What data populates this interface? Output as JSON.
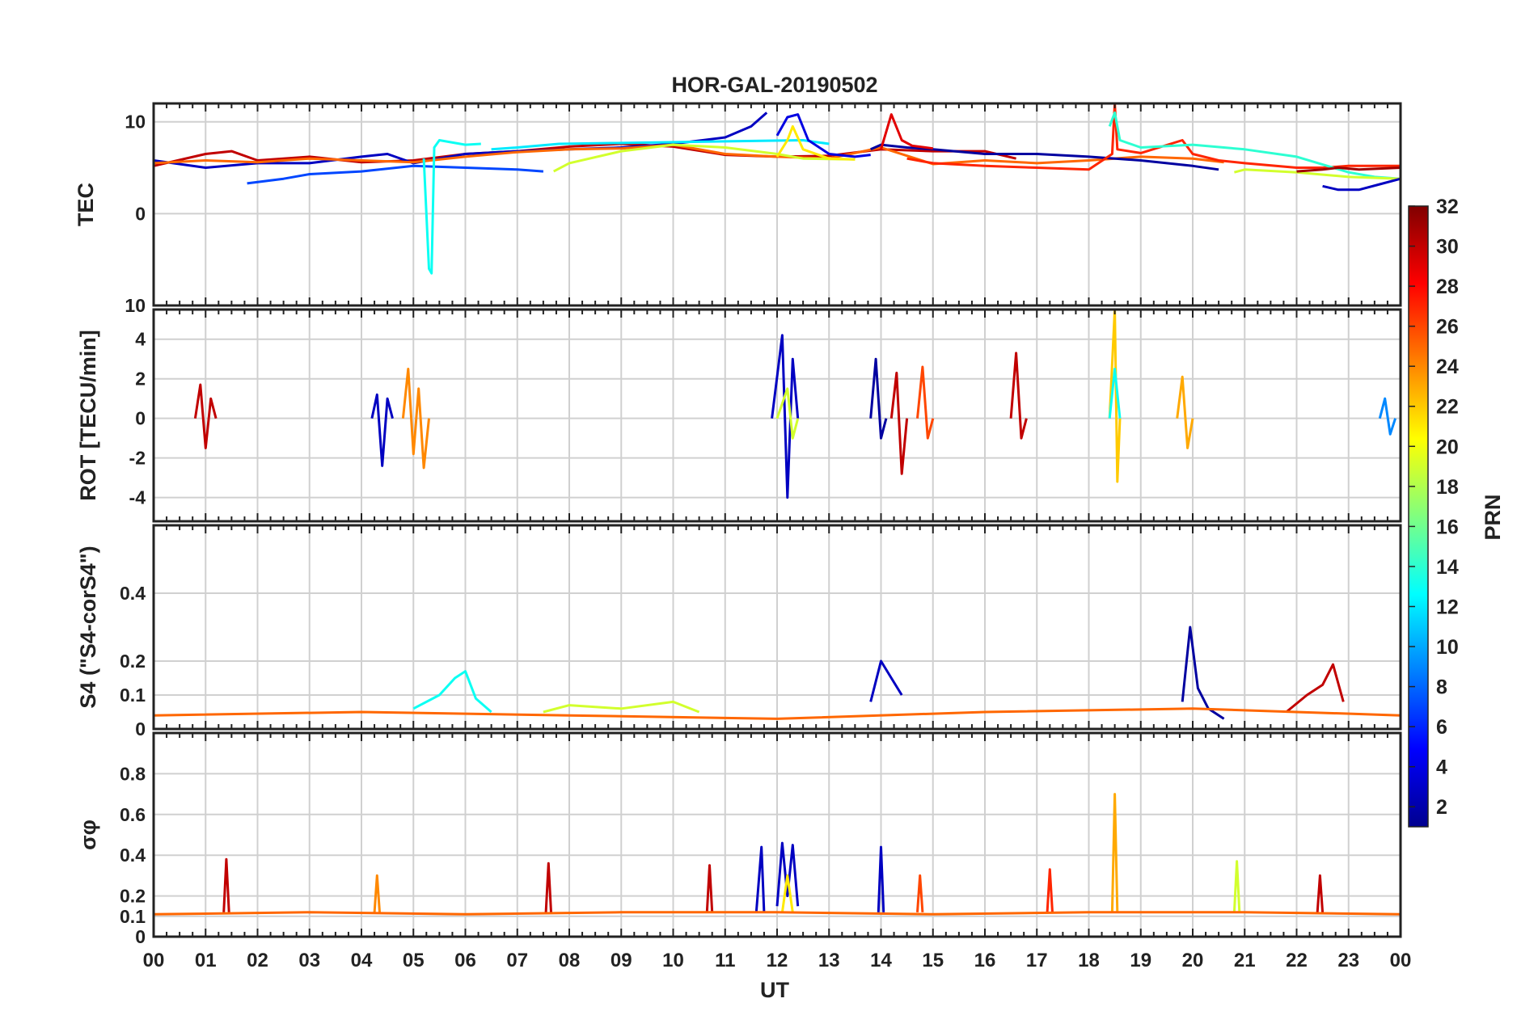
{
  "title": "HOR-GAL-20190502",
  "chart_data": {
    "type": "line",
    "title": "HOR-GAL-20190502",
    "xlabel": "UT",
    "xlim": [
      0,
      24
    ],
    "x_tick_labels": [
      "00",
      "01",
      "02",
      "03",
      "04",
      "05",
      "06",
      "07",
      "08",
      "09",
      "10",
      "11",
      "12",
      "13",
      "14",
      "15",
      "16",
      "17",
      "18",
      "19",
      "20",
      "21",
      "22",
      "23",
      "00"
    ],
    "colorbar": {
      "label": "PRN",
      "range": [
        1,
        32
      ],
      "colormap": "jet",
      "tick_labels": [
        "2",
        "4",
        "6",
        "8",
        "10",
        "12",
        "14",
        "16",
        "18",
        "20",
        "22",
        "24",
        "26",
        "28",
        "30",
        "32"
      ]
    },
    "panels": [
      {
        "name": "tec",
        "ylabel": "TEC",
        "ylim": [
          -10,
          12
        ],
        "y_tick_labels": [
          "10",
          "0",
          "10"
        ],
        "series": [
          {
            "prn": 30,
            "x": [
              0,
              1,
              1.5,
              2,
              3,
              4,
              5,
              6,
              7,
              8,
              9,
              10,
              11,
              12,
              13,
              14,
              15,
              16,
              16.6
            ],
            "y": [
              5.2,
              6.5,
              6.8,
              5.8,
              6.2,
              5.6,
              5.8,
              6.5,
              6.8,
              7.3,
              7.6,
              7.3,
              6.4,
              6.2,
              6.3,
              7,
              6.8,
              6.8,
              6
            ]
          },
          {
            "prn": 3,
            "x": [
              0,
              0.5,
              1,
              2,
              3,
              4,
              4.5,
              5,
              5.5,
              6,
              7,
              8,
              9,
              10,
              11,
              11.5,
              11.8
            ],
            "y": [
              5.8,
              5.4,
              5,
              5.5,
              5.5,
              6.2,
              6.5,
              5.5,
              6,
              6.5,
              6.8,
              7,
              7.2,
              7.6,
              8.3,
              9.5,
              11
            ]
          },
          {
            "prn": 25,
            "x": [
              0,
              1,
              2,
              3,
              4,
              5,
              6,
              7,
              8,
              9,
              10,
              11,
              12,
              13,
              14,
              15,
              16,
              17,
              18,
              19,
              20,
              20.6
            ],
            "y": [
              5.5,
              5.8,
              5.6,
              6,
              5.8,
              5.6,
              6.2,
              6.7,
              7,
              7.1,
              7.5,
              6.5,
              6.2,
              6,
              7.2,
              5.4,
              5.8,
              5.5,
              5.8,
              6.2,
              6,
              5.6
            ]
          },
          {
            "prn": 7,
            "x": [
              1.8,
              2.5,
              3,
              4,
              5,
              6,
              7,
              7.5
            ],
            "y": [
              3.3,
              3.8,
              4.3,
              4.6,
              5.2,
              5,
              4.8,
              4.6
            ]
          },
          {
            "prn": 13,
            "x": [
              5.2,
              5.3,
              5.32,
              5.35,
              5.4,
              5.5,
              6,
              6.3
            ],
            "y": [
              6,
              -6,
              -6.2,
              -6.5,
              7.2,
              8,
              7.5,
              7.6
            ]
          },
          {
            "prn": 12,
            "x": [
              6.5,
              7,
              7.8,
              12.5,
              13
            ],
            "y": [
              7,
              7.2,
              7.6,
              8,
              7.6
            ]
          },
          {
            "prn": 19,
            "x": [
              7.7,
              8,
              9,
              10,
              11,
              12,
              12.5,
              13.5
            ],
            "y": [
              4.6,
              5.5,
              6.8,
              7.5,
              7.2,
              6.5,
              6,
              5.9
            ]
          },
          {
            "prn": 21,
            "x": [
              12,
              12.2,
              12.3,
              12.5,
              13,
              13.5
            ],
            "y": [
              6.2,
              8,
              9.5,
              7,
              6,
              5.9
            ]
          },
          {
            "prn": 4,
            "x": [
              12,
              12.2,
              12.4,
              12.6,
              13,
              13.5,
              13.8
            ],
            "y": [
              8.5,
              10.5,
              10.8,
              8,
              6.5,
              6.2,
              6.4
            ]
          },
          {
            "prn": 2,
            "x": [
              13.8,
              14,
              14.5,
              15,
              16,
              17,
              18,
              19,
              20,
              20.5
            ],
            "y": [
              7,
              7.5,
              7.2,
              7,
              6.5,
              6.5,
              6.2,
              5.8,
              5.2,
              4.8
            ]
          },
          {
            "prn": 29,
            "x": [
              14,
              14.2,
              14.4,
              14.6,
              15
            ],
            "y": [
              7,
              10.8,
              8,
              7.4,
              7.1
            ]
          },
          {
            "prn": 27,
            "x": [
              14.5,
              15,
              16,
              17,
              18,
              18.45,
              18.5,
              18.55,
              19,
              19.8,
              20,
              20.5,
              21,
              22,
              22.5,
              23,
              24
            ],
            "y": [
              6,
              5.5,
              5.2,
              5,
              4.8,
              6.5,
              12,
              7,
              6.6,
              8,
              6.5,
              5.8,
              5.5,
              5,
              5,
              5.2,
              5.2
            ]
          },
          {
            "prn": 14,
            "x": [
              18.4,
              18.5,
              18.6,
              19,
              20,
              21,
              22,
              23,
              23.5,
              24
            ],
            "y": [
              9.5,
              11,
              8,
              7.2,
              7.5,
              7,
              6.2,
              4.5,
              4,
              3.8
            ]
          },
          {
            "prn": 19,
            "x": [
              20.8,
              21,
              22,
              23,
              24
            ],
            "y": [
              4.5,
              4.8,
              4.5,
              4,
              3.8
            ]
          },
          {
            "prn": 3,
            "x": [
              22.5,
              22.8,
              23.2,
              23.6,
              24
            ],
            "y": [
              3,
              2.6,
              2.6,
              3.2,
              3.8
            ]
          },
          {
            "prn": 31,
            "x": [
              22,
              22.5,
              22.8,
              23.2,
              24
            ],
            "y": [
              4.6,
              4.8,
              5,
              4.8,
              5
            ]
          }
        ]
      },
      {
        "name": "rot",
        "ylabel": "ROT [TECU/min]",
        "ylim": [
          -5.2,
          5.5
        ],
        "y_tick_labels": [
          "4",
          "2",
          "0",
          "-2",
          "-4"
        ],
        "series": [
          {
            "prn": 30,
            "x": [
              0.8,
              0.9,
              1,
              1.1,
              1.2
            ],
            "y": [
              0,
              1.7,
              -1.5,
              1,
              0
            ]
          },
          {
            "prn": 3,
            "x": [
              4.2,
              4.3,
              4.4,
              4.5,
              4.6
            ],
            "y": [
              0,
              1.2,
              -2.4,
              1,
              0
            ]
          },
          {
            "prn": 24,
            "x": [
              4.8,
              4.9,
              5,
              5.1,
              5.2,
              5.3
            ],
            "y": [
              0,
              2.5,
              -1.8,
              1.5,
              -2.5,
              0
            ]
          },
          {
            "prn": 3,
            "x": [
              11.9,
              12.1,
              12.2,
              12.3,
              12.4
            ],
            "y": [
              0,
              4.2,
              -4,
              3,
              0
            ]
          },
          {
            "prn": 19,
            "x": [
              12,
              12.2,
              12.3,
              12.4
            ],
            "y": [
              0,
              1.5,
              -1,
              0
            ]
          },
          {
            "prn": 2,
            "x": [
              13.8,
              13.9,
              14,
              14.1
            ],
            "y": [
              0,
              3,
              -1,
              0
            ]
          },
          {
            "prn": 30,
            "x": [
              14.2,
              14.3,
              14.4,
              14.5
            ],
            "y": [
              0,
              2.3,
              -2.8,
              0
            ]
          },
          {
            "prn": 26,
            "x": [
              14.7,
              14.8,
              14.9,
              15
            ],
            "y": [
              0,
              2.6,
              -1,
              0
            ]
          },
          {
            "prn": 30,
            "x": [
              16.5,
              16.6,
              16.7,
              16.8
            ],
            "y": [
              0,
              3.3,
              -1,
              0
            ]
          },
          {
            "prn": 22,
            "x": [
              18.4,
              18.5,
              18.55,
              18.6
            ],
            "y": [
              0,
              5.5,
              -3.2,
              0
            ]
          },
          {
            "prn": 13,
            "x": [
              18.4,
              18.5,
              18.6
            ],
            "y": [
              0,
              2.5,
              0
            ]
          },
          {
            "prn": 23,
            "x": [
              19.7,
              19.8,
              19.9,
              20
            ],
            "y": [
              0,
              2.1,
              -1.5,
              0
            ]
          },
          {
            "prn": 9,
            "x": [
              23.6,
              23.7,
              23.8,
              23.9
            ],
            "y": [
              0,
              1,
              -0.8,
              0
            ]
          }
        ]
      },
      {
        "name": "s4",
        "ylabel": "S4 (\"S4-corS4\")",
        "ylim": [
          0,
          0.6
        ],
        "y_tick_labels": [
          "0.4",
          "0.2",
          "0.1",
          "0"
        ],
        "series": [
          {
            "prn": 13,
            "x": [
              5,
              5.5,
              5.8,
              6,
              6.2,
              6.5
            ],
            "y": [
              0.06,
              0.1,
              0.15,
              0.17,
              0.09,
              0.05
            ]
          },
          {
            "prn": 3,
            "x": [
              13.8,
              14,
              14.2,
              14.4
            ],
            "y": [
              0.08,
              0.2,
              0.15,
              0.1
            ]
          },
          {
            "prn": 2,
            "x": [
              19.8,
              19.95,
              20.1,
              20.3,
              20.6
            ],
            "y": [
              0.08,
              0.3,
              0.12,
              0.06,
              0.03
            ]
          },
          {
            "prn": 30,
            "x": [
              21.8,
              22.2,
              22.5,
              22.7,
              22.9
            ],
            "y": [
              0.05,
              0.1,
              0.13,
              0.19,
              0.08
            ]
          },
          {
            "prn": 25,
            "x": [
              0,
              4,
              8,
              12,
              16,
              20,
              24
            ],
            "y": [
              0.04,
              0.05,
              0.04,
              0.03,
              0.05,
              0.06,
              0.04
            ]
          },
          {
            "prn": 19,
            "x": [
              7.5,
              8,
              9,
              10,
              10.5
            ],
            "y": [
              0.05,
              0.07,
              0.06,
              0.08,
              0.05
            ]
          }
        ]
      },
      {
        "name": "sigma_phi",
        "ylabel": "σφ",
        "ylim": [
          0,
          1.0
        ],
        "y_tick_labels": [
          "0.8",
          "0.6",
          "0.4",
          "0.2",
          "0.1",
          "0"
        ],
        "series": [
          {
            "prn": 30,
            "x": [
              1.35,
              1.4,
              1.45
            ],
            "y": [
              0.12,
              0.38,
              0.12
            ]
          },
          {
            "prn": 24,
            "x": [
              4.25,
              4.3,
              4.35
            ],
            "y": [
              0.12,
              0.3,
              0.12
            ]
          },
          {
            "prn": 30,
            "x": [
              7.55,
              7.6,
              7.65
            ],
            "y": [
              0.12,
              0.36,
              0.12
            ]
          },
          {
            "prn": 30,
            "x": [
              10.65,
              10.7,
              10.75
            ],
            "y": [
              0.12,
              0.35,
              0.12
            ]
          },
          {
            "prn": 3,
            "x": [
              11.6,
              11.7,
              11.75
            ],
            "y": [
              0.12,
              0.44,
              0.12
            ]
          },
          {
            "prn": 3,
            "x": [
              12,
              12.1,
              12.2,
              12.3,
              12.4
            ],
            "y": [
              0.15,
              0.46,
              0.2,
              0.45,
              0.15
            ]
          },
          {
            "prn": 21,
            "x": [
              12.1,
              12.2,
              12.3
            ],
            "y": [
              0.12,
              0.3,
              0.12
            ]
          },
          {
            "prn": 3,
            "x": [
              13.95,
              14,
              14.05
            ],
            "y": [
              0.12,
              0.44,
              0.12
            ]
          },
          {
            "prn": 26,
            "x": [
              14.7,
              14.75,
              14.8
            ],
            "y": [
              0.12,
              0.3,
              0.12
            ]
          },
          {
            "prn": 27,
            "x": [
              17.2,
              17.25,
              17.3
            ],
            "y": [
              0.12,
              0.33,
              0.12
            ]
          },
          {
            "prn": 23,
            "x": [
              18.45,
              18.5,
              18.55
            ],
            "y": [
              0.12,
              0.7,
              0.12
            ]
          },
          {
            "prn": 19,
            "x": [
              20.8,
              20.85,
              20.9
            ],
            "y": [
              0.12,
              0.37,
              0.12
            ]
          },
          {
            "prn": 30,
            "x": [
              22.4,
              22.45,
              22.5
            ],
            "y": [
              0.12,
              0.3,
              0.12
            ]
          },
          {
            "prn": 25,
            "x": [
              0,
              3,
              6,
              9,
              12,
              15,
              18,
              21,
              24
            ],
            "y": [
              0.11,
              0.12,
              0.11,
              0.12,
              0.12,
              0.11,
              0.12,
              0.12,
              0.11
            ]
          }
        ]
      }
    ]
  }
}
